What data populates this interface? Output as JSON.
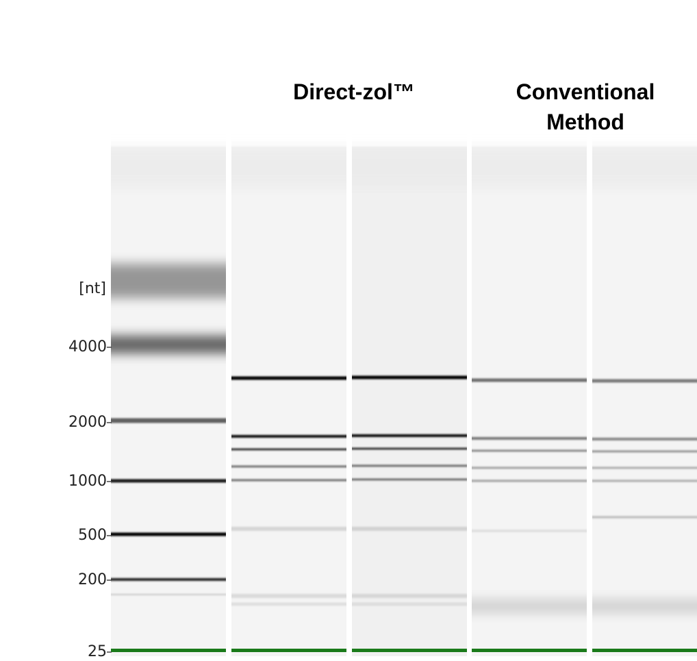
{
  "headers": {
    "left": "Direct-zol™",
    "right": [
      "Conventional",
      "Method"
    ]
  },
  "size_unit": "[nt]",
  "ladder": [
    4000,
    2000,
    1000,
    500,
    200,
    25
  ]
}
